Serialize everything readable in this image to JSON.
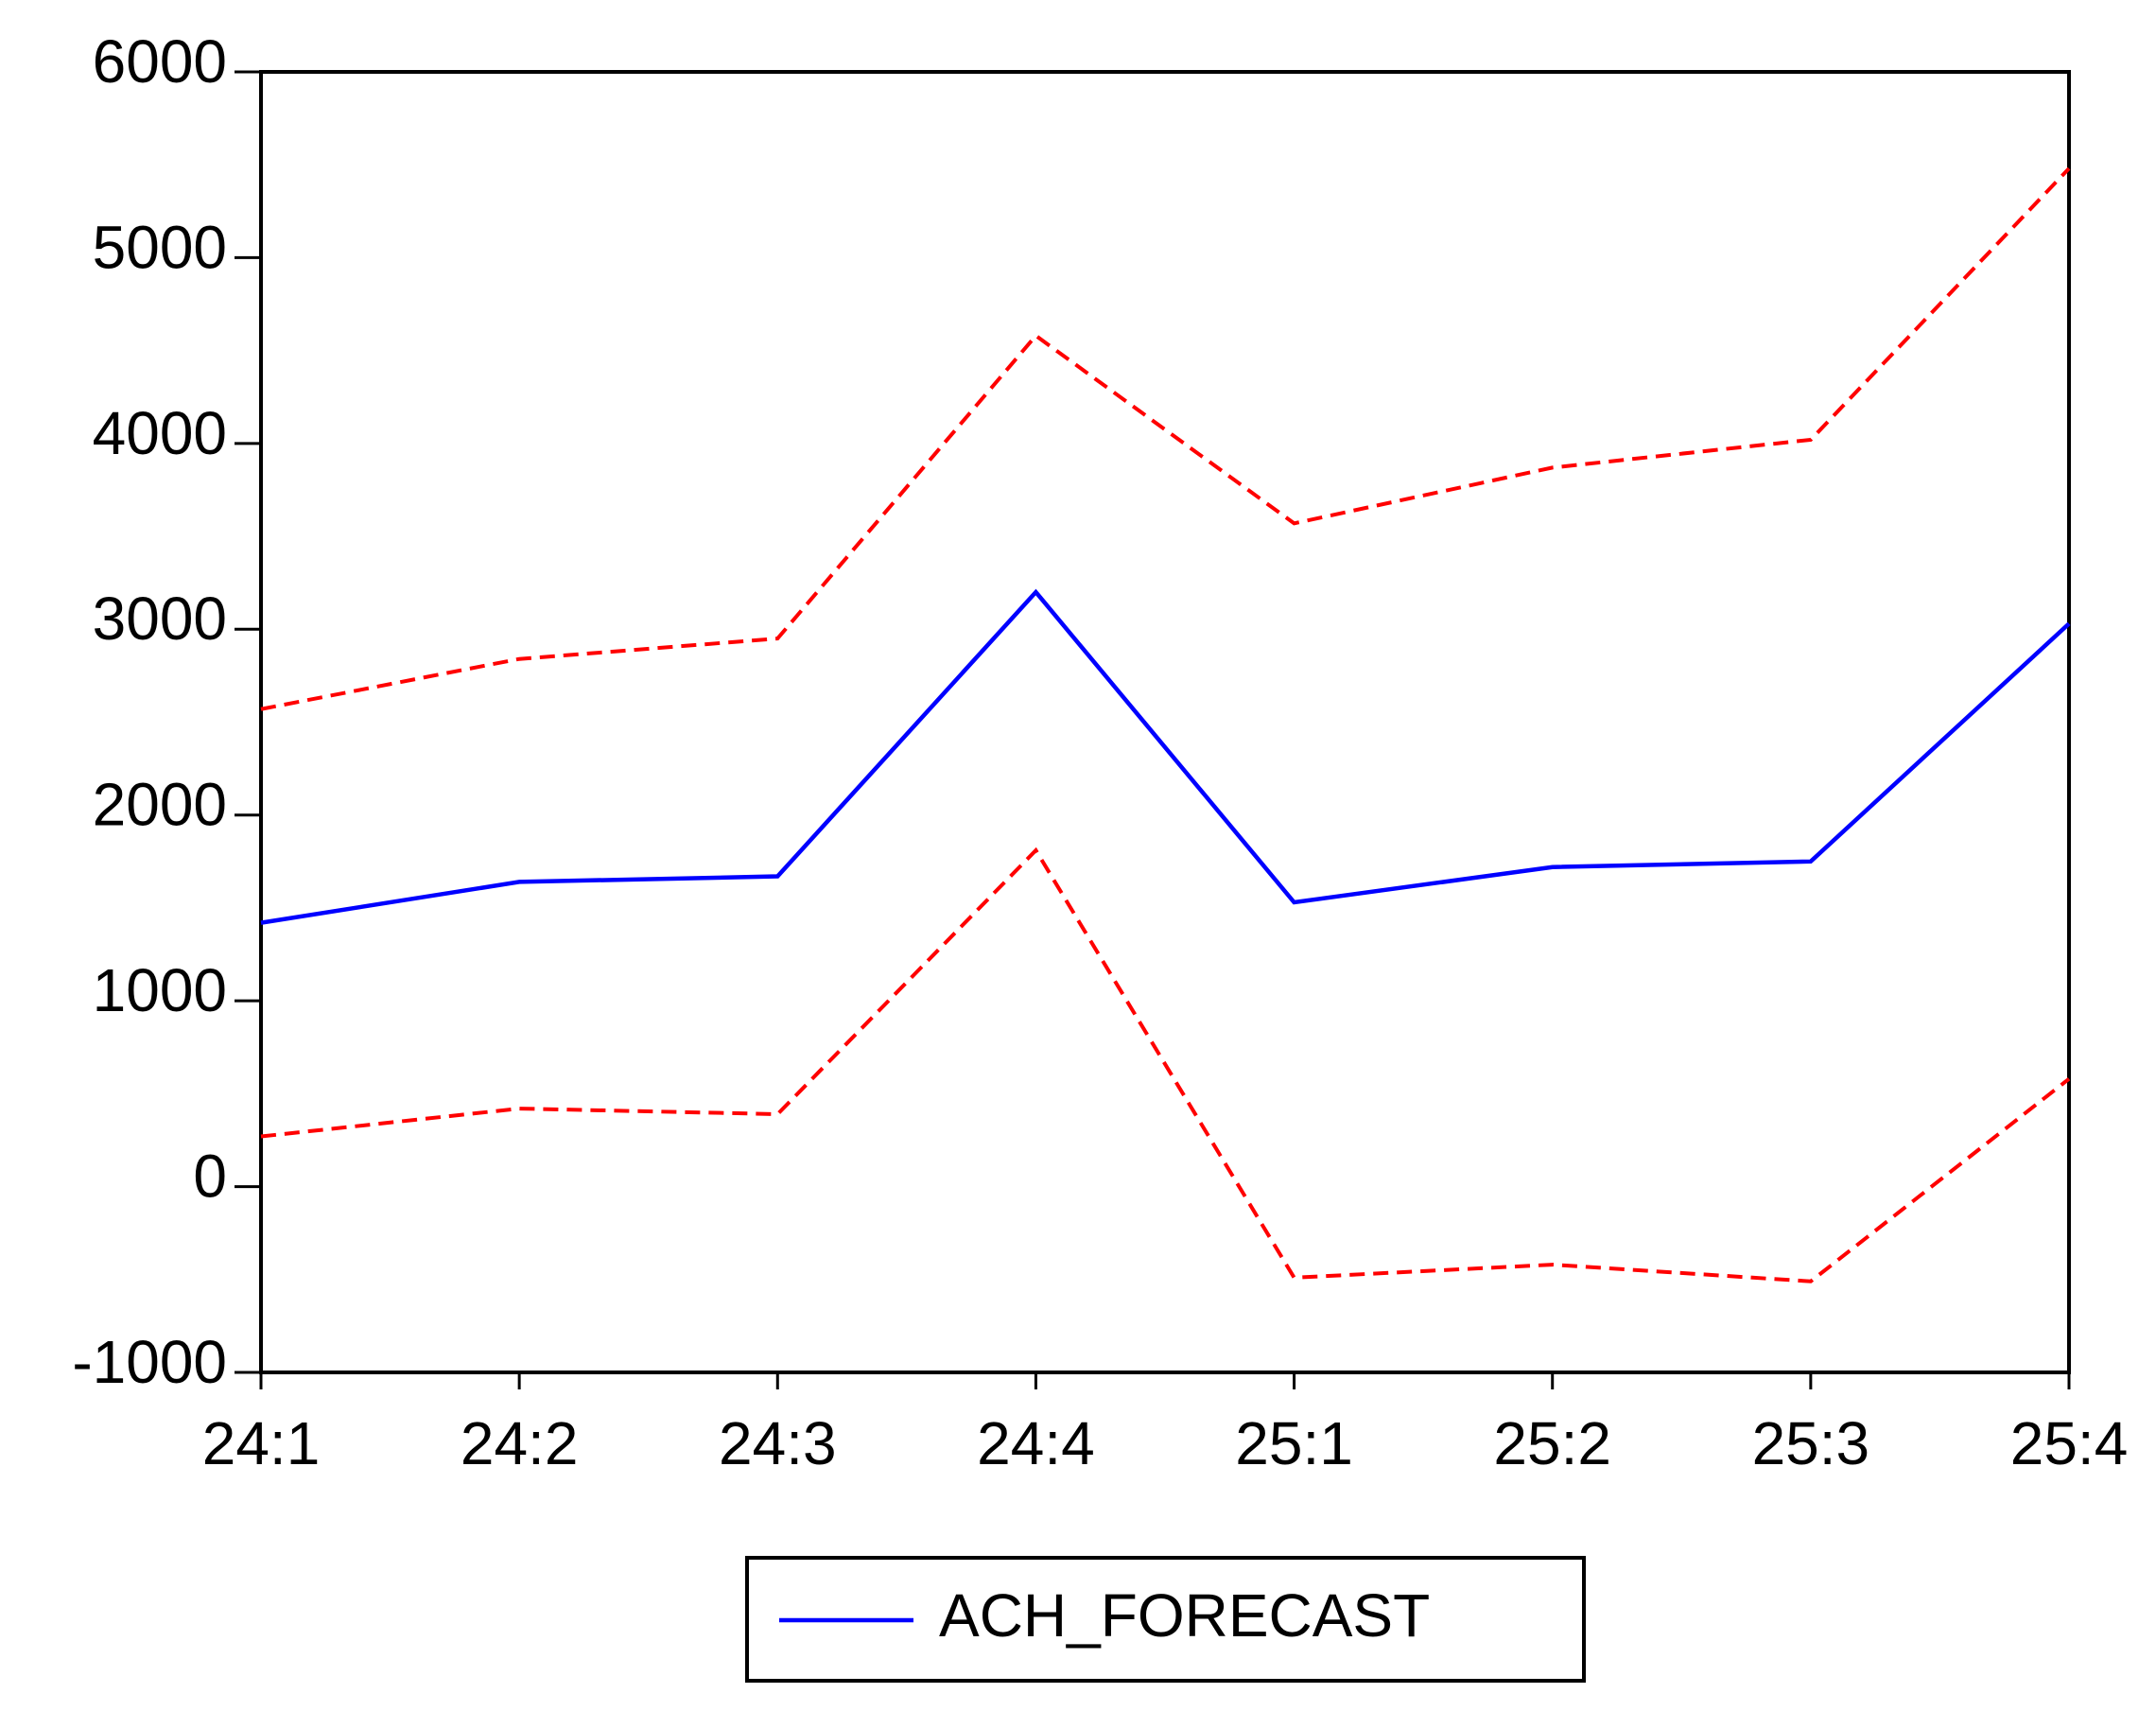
{
  "chart_data": {
    "type": "line",
    "categories": [
      "24:1",
      "24:2",
      "24:3",
      "24:4",
      "25:1",
      "25:2",
      "25:3",
      "25:4"
    ],
    "series": [
      {
        "name": "ACH_FORECAST",
        "color": "#0000ff",
        "values": [
          1420,
          1640,
          1670,
          3200,
          1530,
          1720,
          1750,
          3030
        ]
      },
      {
        "color": "#ff0000",
        "dashed": true,
        "values": [
          2570,
          2840,
          2950,
          4580,
          3570,
          3870,
          4020,
          5480
        ]
      },
      {
        "color": "#ff0000",
        "dashed": true,
        "values": [
          270,
          420,
          390,
          1810,
          -490,
          -420,
          -510,
          580
        ]
      }
    ],
    "ylim": [
      -1000,
      6000
    ],
    "yticks": [
      -1000,
      0,
      1000,
      2000,
      3000,
      4000,
      5000,
      6000
    ],
    "legend": "bottom"
  }
}
